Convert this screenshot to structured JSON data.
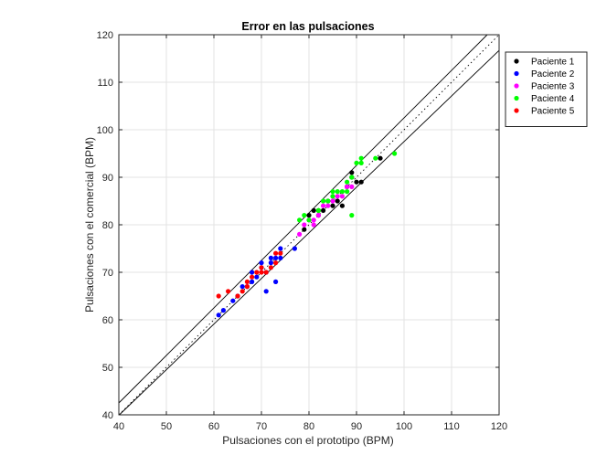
{
  "chart_data": {
    "type": "scatter",
    "title": "Error en las pulsaciones",
    "xlabel": "Pulsaciones con el prototipo (BPM)",
    "ylabel": "Pulsaciones con el comercial (BPM)",
    "xlim": [
      40,
      120
    ],
    "ylim": [
      40,
      120
    ],
    "xticks": [
      40,
      50,
      60,
      70,
      80,
      90,
      100,
      110,
      120
    ],
    "yticks": [
      40,
      50,
      60,
      70,
      80,
      90,
      100,
      110,
      120
    ],
    "grid": true,
    "legend_position": "top-right",
    "reference_lines": [
      {
        "style": "dotted",
        "slope": 1.0,
        "intercept": 0
      },
      {
        "style": "solid",
        "slope": 1.0,
        "intercept": 2.5
      },
      {
        "style": "solid",
        "slope": 0.96,
        "intercept": 1.5
      }
    ],
    "series": [
      {
        "name": "Paciente 1",
        "color": "#000000",
        "points": [
          [
            79,
            79
          ],
          [
            80,
            82
          ],
          [
            81,
            83
          ],
          [
            82,
            82
          ],
          [
            82,
            83
          ],
          [
            83,
            83
          ],
          [
            84,
            85
          ],
          [
            85,
            84
          ],
          [
            86,
            85
          ],
          [
            87,
            84
          ],
          [
            88,
            88
          ],
          [
            89,
            91
          ],
          [
            89,
            90
          ],
          [
            90,
            89
          ],
          [
            91,
            89
          ],
          [
            95,
            94
          ]
        ]
      },
      {
        "name": "Paciente 2",
        "color": "#0000ff",
        "points": [
          [
            61,
            61
          ],
          [
            62,
            62
          ],
          [
            64,
            64
          ],
          [
            65,
            65
          ],
          [
            66,
            67
          ],
          [
            67,
            67
          ],
          [
            68,
            68
          ],
          [
            68,
            70
          ],
          [
            69,
            69
          ],
          [
            70,
            71
          ],
          [
            70,
            72
          ],
          [
            71,
            70
          ],
          [
            71,
            66
          ],
          [
            72,
            72
          ],
          [
            72,
            73
          ],
          [
            73,
            73
          ],
          [
            73,
            68
          ],
          [
            74,
            73
          ],
          [
            74,
            75
          ],
          [
            77,
            75
          ]
        ]
      },
      {
        "name": "Paciente 3",
        "color": "#ff00ff",
        "points": [
          [
            78,
            78
          ],
          [
            79,
            80
          ],
          [
            80,
            81
          ],
          [
            81,
            80
          ],
          [
            81,
            81
          ],
          [
            82,
            82
          ],
          [
            83,
            84
          ],
          [
            84,
            84
          ],
          [
            85,
            85
          ],
          [
            85,
            86
          ],
          [
            86,
            86
          ],
          [
            87,
            86
          ],
          [
            88,
            88
          ],
          [
            89,
            88
          ]
        ]
      },
      {
        "name": "Paciente 4",
        "color": "#00ff00",
        "points": [
          [
            78,
            81
          ],
          [
            79,
            82
          ],
          [
            80,
            81
          ],
          [
            82,
            83
          ],
          [
            83,
            85
          ],
          [
            84,
            85
          ],
          [
            85,
            86
          ],
          [
            85,
            87
          ],
          [
            86,
            87
          ],
          [
            87,
            87
          ],
          [
            88,
            87
          ],
          [
            88,
            89
          ],
          [
            89,
            90
          ],
          [
            89,
            82
          ],
          [
            90,
            93
          ],
          [
            91,
            94
          ],
          [
            91,
            93
          ],
          [
            94,
            94
          ],
          [
            98,
            95
          ]
        ]
      },
      {
        "name": "Paciente 5",
        "color": "#ff0000",
        "points": [
          [
            61,
            65
          ],
          [
            63,
            66
          ],
          [
            65,
            65
          ],
          [
            66,
            66
          ],
          [
            67,
            67
          ],
          [
            67,
            68
          ],
          [
            68,
            69
          ],
          [
            69,
            70
          ],
          [
            70,
            70
          ],
          [
            70,
            71
          ],
          [
            71,
            70
          ],
          [
            72,
            71
          ],
          [
            73,
            72
          ],
          [
            73,
            74
          ],
          [
            74,
            74
          ]
        ]
      }
    ]
  }
}
